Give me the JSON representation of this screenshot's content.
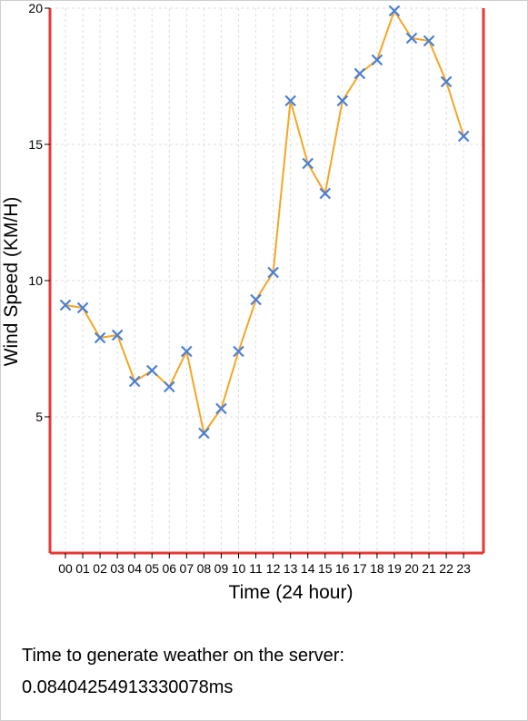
{
  "chart_data": {
    "type": "line",
    "xlabel": "Time (24 hour)",
    "ylabel": "Wind Speed (KM/H)",
    "categories": [
      "00",
      "01",
      "02",
      "03",
      "04",
      "05",
      "06",
      "07",
      "08",
      "09",
      "10",
      "11",
      "12",
      "13",
      "14",
      "15",
      "16",
      "17",
      "18",
      "19",
      "20",
      "21",
      "22",
      "23"
    ],
    "values": [
      9.1,
      9.0,
      7.9,
      8.0,
      6.3,
      6.7,
      6.1,
      7.4,
      4.4,
      5.3,
      7.4,
      9.3,
      10.3,
      16.6,
      14.3,
      13.2,
      16.6,
      17.6,
      18.1,
      19.9,
      18.9,
      18.8,
      17.3,
      15.3
    ],
    "y_ticks": [
      "5",
      "10",
      "15",
      "20"
    ],
    "ylim": [
      0,
      20
    ],
    "grid": true,
    "line_color": "#f5a623",
    "marker_color": "#4a7fd4",
    "axis_color": "#e53935"
  },
  "footer": {
    "label": "Time to generate weather on the server:",
    "value": "0.08404254913330078ms"
  }
}
